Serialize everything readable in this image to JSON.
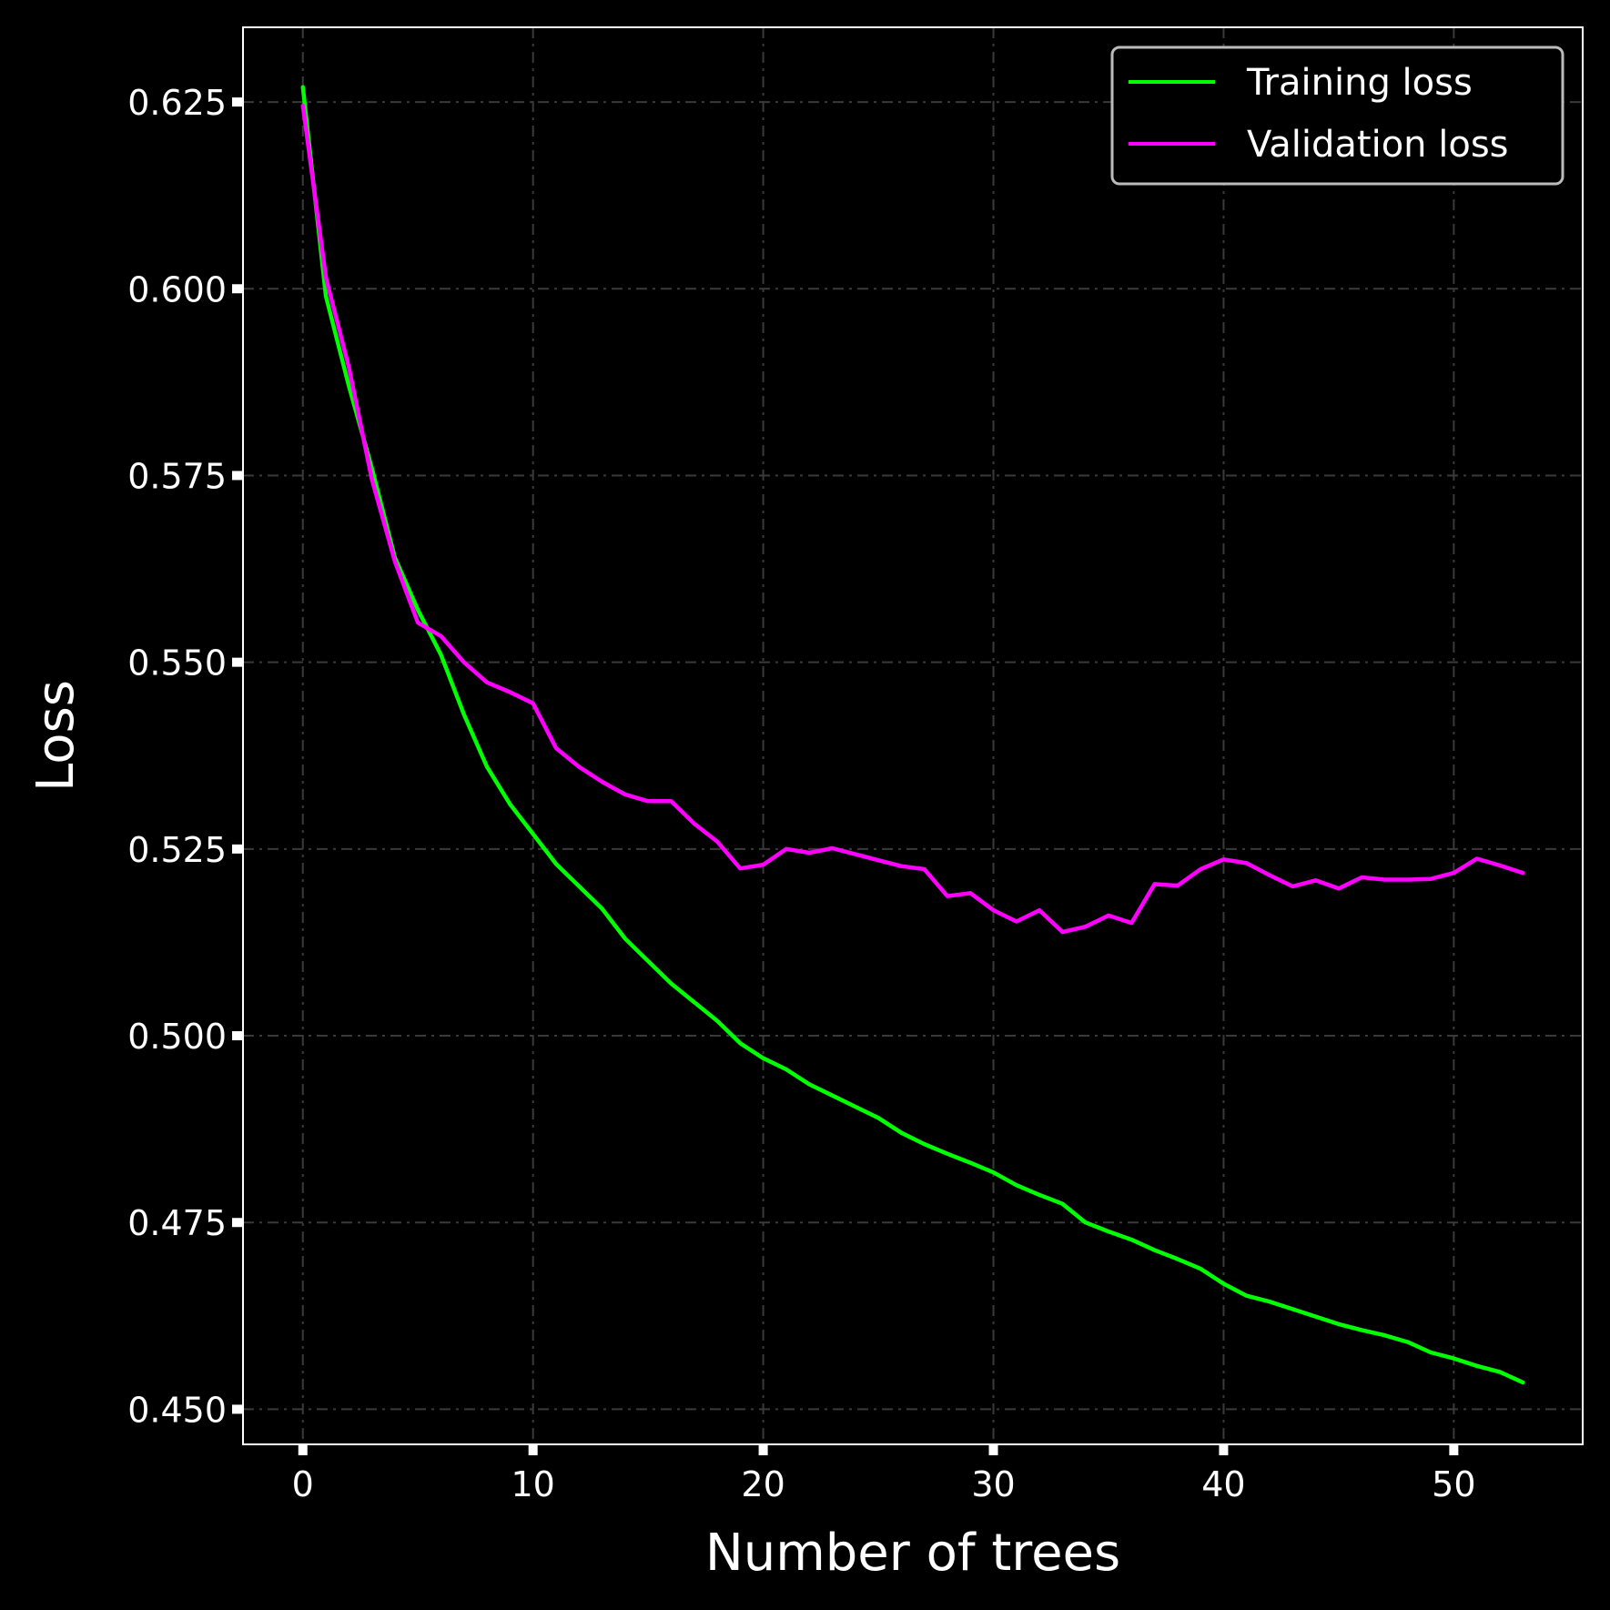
{
  "chart_data": {
    "type": "line",
    "title": "",
    "xlabel": "Number of trees",
    "ylabel": "Loss",
    "xlim": [
      -2.6,
      55.6
    ],
    "ylim": [
      0.4453,
      0.635
    ],
    "xticks": [
      0,
      10,
      20,
      30,
      40,
      50
    ],
    "xtick_labels": [
      "0",
      "10",
      "20",
      "30",
      "40",
      "50"
    ],
    "yticks": [
      0.45,
      0.475,
      0.5,
      0.525,
      0.55,
      0.575,
      0.6,
      0.625
    ],
    "ytick_labels": [
      "0.450",
      "0.475",
      "0.500",
      "0.525",
      "0.550",
      "0.575",
      "0.600",
      "0.625"
    ],
    "grid": true,
    "legend_position": "top-right",
    "background": "#000000",
    "series": [
      {
        "name": "Training loss",
        "color": "#00ff00",
        "x": [
          0,
          1,
          2,
          3,
          4,
          5,
          6,
          7,
          8,
          9,
          10,
          11,
          12,
          13,
          14,
          15,
          16,
          17,
          18,
          19,
          20,
          21,
          22,
          23,
          24,
          25,
          26,
          27,
          28,
          29,
          30,
          31,
          32,
          33,
          34,
          35,
          36,
          37,
          38,
          39,
          40,
          41,
          42,
          43,
          44,
          45,
          46,
          47,
          48,
          49,
          50,
          51,
          52,
          53
        ],
        "values": [
          0.627,
          0.599,
          0.587,
          0.576,
          0.564,
          0.557,
          0.551,
          0.543,
          0.536,
          0.531,
          0.527,
          0.523,
          0.52,
          0.517,
          0.513,
          0.51,
          0.507,
          0.5045,
          0.502,
          0.499,
          0.497,
          0.4955,
          0.4935,
          0.492,
          0.4905,
          0.489,
          0.487,
          0.4855,
          0.4842,
          0.483,
          0.4817,
          0.48,
          0.4787,
          0.4775,
          0.475,
          0.4738,
          0.4727,
          0.4713,
          0.4701,
          0.4688,
          0.4668,
          0.4652,
          0.4644,
          0.4634,
          0.4624,
          0.4614,
          0.4606,
          0.4599,
          0.459,
          0.4576,
          0.4568,
          0.4558,
          0.455,
          0.4536
        ]
      },
      {
        "name": "Validation loss",
        "color": "#ff00ff",
        "x": [
          0,
          1,
          2,
          3,
          4,
          5,
          6,
          7,
          8,
          9,
          10,
          11,
          12,
          13,
          14,
          15,
          16,
          17,
          18,
          19,
          20,
          21,
          22,
          23,
          24,
          25,
          26,
          27,
          28,
          29,
          30,
          31,
          32,
          33,
          34,
          35,
          36,
          37,
          38,
          39,
          40,
          41,
          42,
          43,
          44,
          45,
          46,
          47,
          48,
          49,
          50,
          51,
          52,
          53
        ],
        "values": [
          0.6245,
          0.6015,
          0.5895,
          0.5745,
          0.5635,
          0.5553,
          0.5535,
          0.55,
          0.5473,
          0.546,
          0.5445,
          0.5385,
          0.536,
          0.534,
          0.5323,
          0.5314,
          0.5314,
          0.5284,
          0.526,
          0.5224,
          0.5229,
          0.525,
          0.5245,
          0.5251,
          0.5243,
          0.5235,
          0.5227,
          0.5223,
          0.5187,
          0.5191,
          0.5168,
          0.5153,
          0.5168,
          0.5139,
          0.5146,
          0.5161,
          0.5151,
          0.5203,
          0.5201,
          0.5223,
          0.5236,
          0.5231,
          0.5215,
          0.52,
          0.5208,
          0.5197,
          0.5212,
          0.5209,
          0.5209,
          0.521,
          0.5218,
          0.5237,
          0.5228,
          0.5218
        ]
      }
    ]
  }
}
